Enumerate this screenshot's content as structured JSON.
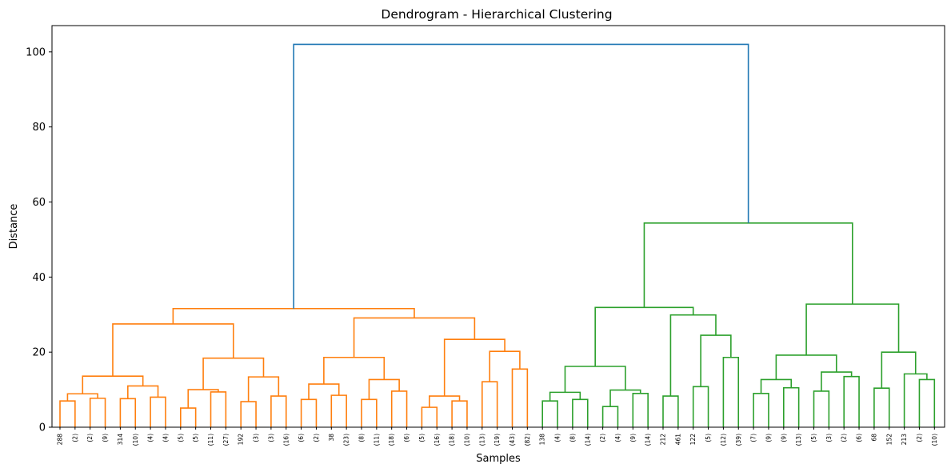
{
  "chart_data": {
    "type": "dendrogram",
    "title": "Dendrogram - Hierarchical Clustering",
    "xlabel": "Samples",
    "ylabel": "Distance",
    "ylim": [
      0,
      107
    ],
    "yticks": [
      0,
      20,
      40,
      60,
      80,
      100
    ],
    "grid": false,
    "colors": {
      "left_cluster": "#ff7f0e",
      "right_cluster": "#2ca02c",
      "root": "#1f77b4"
    },
    "leaf_labels": [
      "288",
      "(2)",
      "(2)",
      "(9)",
      "314",
      "(10)",
      "(4)",
      "(4)",
      "(5)",
      "(5)",
      "(11)",
      "(27)",
      "192",
      "(3)",
      "(3)",
      "(16)",
      "(6)",
      "(2)",
      "38",
      "(23)",
      "(8)",
      "(11)",
      "(18)",
      "(6)",
      "(5)",
      "(16)",
      "(18)",
      "(10)",
      "(13)",
      "(19)",
      "(43)",
      "(82)",
      "138",
      "(4)",
      "(8)",
      "(14)",
      "(2)",
      "(4)",
      "(9)",
      "(14)",
      "212",
      "461",
      "122",
      "(5)",
      "(12)",
      "(39)",
      "(7)",
      "(9)",
      "(9)",
      "(13)",
      "(5)",
      "(3)",
      "(2)",
      "(6)",
      "68",
      "152",
      "213",
      "(2)",
      "(10)"
    ],
    "merges": [
      {
        "id": "A",
        "l": 0,
        "r": 1,
        "h": 7.0,
        "c": "left_cluster"
      },
      {
        "id": "B",
        "l": 2,
        "r": 3,
        "h": 7.7,
        "c": "left_cluster"
      },
      {
        "id": "C",
        "l": "A",
        "r": "B",
        "h": 8.9,
        "c": "left_cluster"
      },
      {
        "id": "D",
        "l": 4,
        "r": 5,
        "h": 7.6,
        "c": "left_cluster"
      },
      {
        "id": "E",
        "l": 6,
        "r": 7,
        "h": 8.0,
        "c": "left_cluster"
      },
      {
        "id": "F",
        "l": "D",
        "r": "E",
        "h": 11.0,
        "c": "left_cluster"
      },
      {
        "id": "G",
        "l": "C",
        "r": "F",
        "h": 13.6,
        "c": "left_cluster"
      },
      {
        "id": "H",
        "l": 8,
        "r": 9,
        "h": 5.1,
        "c": "left_cluster"
      },
      {
        "id": "I",
        "l": 10,
        "r": 11,
        "h": 9.4,
        "c": "left_cluster"
      },
      {
        "id": "J",
        "l": "H",
        "r": "I",
        "h": 10.0,
        "c": "left_cluster"
      },
      {
        "id": "K",
        "l": 12,
        "r": 13,
        "h": 6.8,
        "c": "left_cluster"
      },
      {
        "id": "L",
        "l": 14,
        "r": 15,
        "h": 8.3,
        "c": "left_cluster"
      },
      {
        "id": "M",
        "l": "K",
        "r": "L",
        "h": 13.4,
        "c": "left_cluster"
      },
      {
        "id": "N",
        "l": "J",
        "r": "M",
        "h": 18.4,
        "c": "left_cluster"
      },
      {
        "id": "O",
        "l": "G",
        "r": "N",
        "h": 27.5,
        "c": "left_cluster"
      },
      {
        "id": "P",
        "l": 16,
        "r": 17,
        "h": 7.4,
        "c": "left_cluster"
      },
      {
        "id": "Q",
        "l": 18,
        "r": 19,
        "h": 8.5,
        "c": "left_cluster"
      },
      {
        "id": "R",
        "l": "P",
        "r": "Q",
        "h": 11.5,
        "c": "left_cluster"
      },
      {
        "id": "S",
        "l": 20,
        "r": 21,
        "h": 7.4,
        "c": "left_cluster"
      },
      {
        "id": "T",
        "l": 22,
        "r": 23,
        "h": 9.6,
        "c": "left_cluster"
      },
      {
        "id": "U",
        "l": "S",
        "r": "T",
        "h": 12.7,
        "c": "left_cluster"
      },
      {
        "id": "V",
        "l": "R",
        "r": "U",
        "h": 18.6,
        "c": "left_cluster"
      },
      {
        "id": "W",
        "l": 24,
        "r": 25,
        "h": 5.3,
        "c": "left_cluster"
      },
      {
        "id": "X",
        "l": 26,
        "r": 27,
        "h": 7.0,
        "c": "left_cluster"
      },
      {
        "id": "Y",
        "l": "W",
        "r": "X",
        "h": 8.3,
        "c": "left_cluster"
      },
      {
        "id": "Z",
        "l": 28,
        "r": 29,
        "h": 12.1,
        "c": "left_cluster"
      },
      {
        "id": "AA",
        "l": 30,
        "r": 31,
        "h": 15.5,
        "c": "left_cluster"
      },
      {
        "id": "AB",
        "l": "Z",
        "r": "AA",
        "h": 20.2,
        "c": "left_cluster"
      },
      {
        "id": "AC",
        "l": "Y",
        "r": "AB",
        "h": 23.4,
        "c": "left_cluster"
      },
      {
        "id": "AD",
        "l": "V",
        "r": "AC",
        "h": 29.1,
        "c": "left_cluster"
      },
      {
        "id": "AE",
        "l": "O",
        "r": "AD",
        "h": 31.6,
        "c": "left_cluster"
      },
      {
        "id": "BA",
        "l": 32,
        "r": 33,
        "h": 7.0,
        "c": "right_cluster"
      },
      {
        "id": "BB",
        "l": 34,
        "r": 35,
        "h": 7.4,
        "c": "right_cluster"
      },
      {
        "id": "BC",
        "l": "BA",
        "r": "BB",
        "h": 9.3,
        "c": "right_cluster"
      },
      {
        "id": "BD",
        "l": 36,
        "r": 37,
        "h": 5.5,
        "c": "right_cluster"
      },
      {
        "id": "BE",
        "l": 38,
        "r": 39,
        "h": 9.0,
        "c": "right_cluster"
      },
      {
        "id": "BF",
        "l": "BD",
        "r": "BE",
        "h": 9.9,
        "c": "right_cluster"
      },
      {
        "id": "BG",
        "l": "BC",
        "r": "BF",
        "h": 16.2,
        "c": "right_cluster"
      },
      {
        "id": "BH",
        "l": 40,
        "r": 41,
        "h": 8.3,
        "c": "right_cluster"
      },
      {
        "id": "BI",
        "l": 42,
        "r": 43,
        "h": 10.8,
        "c": "right_cluster"
      },
      {
        "id": "BJ",
        "l": 44,
        "r": 45,
        "h": 18.6,
        "c": "right_cluster"
      },
      {
        "id": "BK",
        "l": "BI",
        "r": "BJ",
        "h": 24.5,
        "c": "right_cluster"
      },
      {
        "id": "BL",
        "l": "BH",
        "r": "BK",
        "h": 29.9,
        "c": "right_cluster"
      },
      {
        "id": "BM",
        "l": "BG",
        "r": "BL",
        "h": 31.9,
        "c": "right_cluster"
      },
      {
        "id": "BN",
        "l": 46,
        "r": 47,
        "h": 9.0,
        "c": "right_cluster"
      },
      {
        "id": "BO",
        "l": 48,
        "r": 49,
        "h": 10.5,
        "c": "right_cluster"
      },
      {
        "id": "BP",
        "l": "BN",
        "r": "BO",
        "h": 12.7,
        "c": "right_cluster"
      },
      {
        "id": "BQ",
        "l": 50,
        "r": 51,
        "h": 9.6,
        "c": "right_cluster"
      },
      {
        "id": "BR",
        "l": 52,
        "r": 53,
        "h": 13.5,
        "c": "right_cluster"
      },
      {
        "id": "BS",
        "l": "BQ",
        "r": "BR",
        "h": 14.7,
        "c": "right_cluster"
      },
      {
        "id": "BT",
        "l": "BP",
        "r": "BS",
        "h": 19.2,
        "c": "right_cluster"
      },
      {
        "id": "BU",
        "l": 54,
        "r": 55,
        "h": 10.4,
        "c": "right_cluster"
      },
      {
        "id": "BV",
        "l": 57,
        "r": 58,
        "h": 12.7,
        "c": "right_cluster"
      },
      {
        "id": "BW",
        "l": 56,
        "r": "BV",
        "h": 14.2,
        "c": "right_cluster"
      },
      {
        "id": "BX",
        "l": "BU",
        "r": "BW",
        "h": 20.0,
        "c": "right_cluster"
      },
      {
        "id": "BY",
        "l": "BT",
        "r": "BX",
        "h": 32.8,
        "c": "right_cluster"
      },
      {
        "id": "BZ",
        "l": "BM",
        "r": "BY",
        "h": 54.4,
        "c": "right_cluster"
      },
      {
        "id": "ROOT",
        "l": "AE",
        "r": "BZ",
        "h": 102.0,
        "c": "root"
      }
    ]
  }
}
